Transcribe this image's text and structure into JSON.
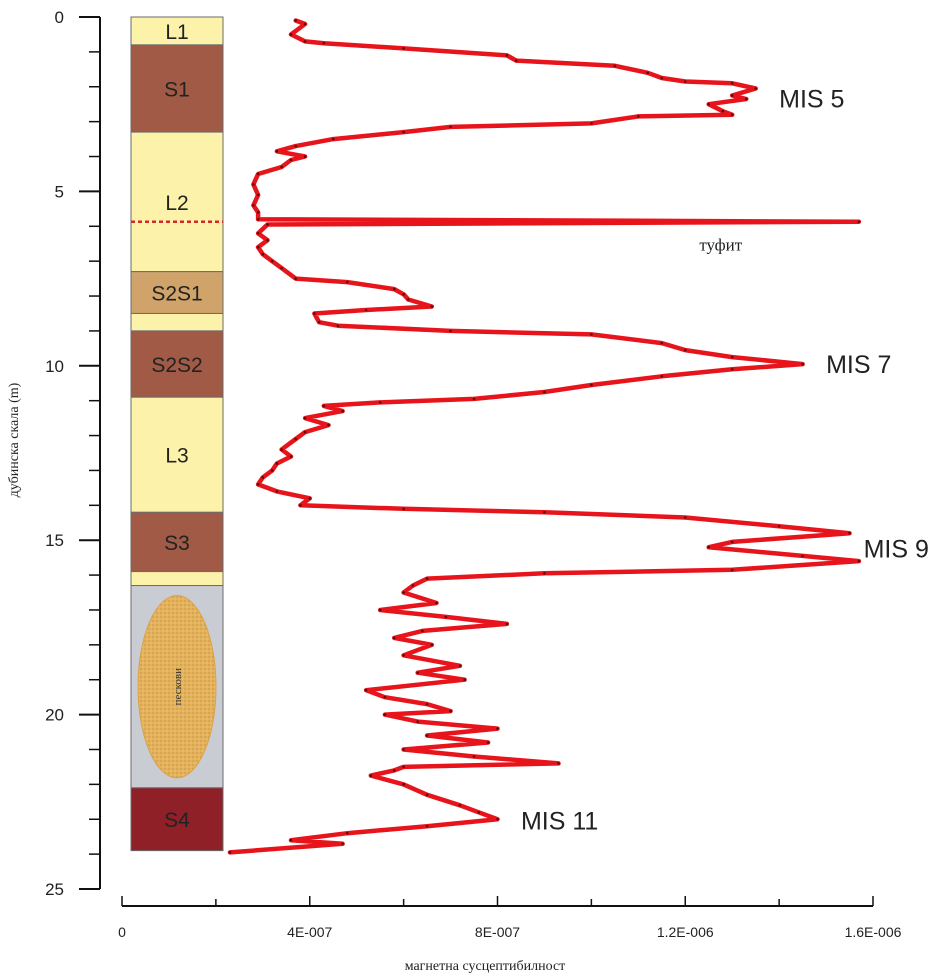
{
  "chart_data": {
    "type": "line",
    "title": "",
    "xlabel": "магнетна сусцептибилност",
    "ylabel": "дубинска скала (m)",
    "xlim": [
      0,
      1.6e-06
    ],
    "ylim": [
      0,
      25
    ],
    "y_inverted": true,
    "x_ticks": [
      0,
      4e-07,
      8e-07,
      1.2e-06,
      1.6e-06
    ],
    "x_tick_labels": [
      "0",
      "4E-007",
      "8E-007",
      "1.2E-006",
      "1.6E-006"
    ],
    "y_ticks": [
      0,
      5,
      10,
      15,
      20,
      25
    ],
    "y_tick_labels": [
      "0",
      "5",
      "10",
      "15",
      "20",
      "25"
    ],
    "grid": false,
    "line_color": "#e8141b",
    "series": [
      {
        "name": "",
        "points": [
          [
            3.7e-07,
            0.1
          ],
          [
            3.9e-07,
            0.2
          ],
          [
            3.6e-07,
            0.5
          ],
          [
            3.9e-07,
            0.7
          ],
          [
            4.3e-07,
            0.75
          ],
          [
            6e-07,
            0.9
          ],
          [
            8.2e-07,
            1.1
          ],
          [
            8.4e-07,
            1.25
          ],
          [
            1.05e-06,
            1.4
          ],
          [
            1.12e-06,
            1.6
          ],
          [
            1.15e-06,
            1.75
          ],
          [
            1.2e-06,
            1.85
          ],
          [
            1.3e-06,
            1.9
          ],
          [
            1.35e-06,
            2.05
          ],
          [
            1.3e-06,
            2.25
          ],
          [
            1.33e-06,
            2.35
          ],
          [
            1.25e-06,
            2.5
          ],
          [
            1.28e-06,
            2.7
          ],
          [
            1.3e-06,
            2.8
          ],
          [
            1.1e-06,
            2.85
          ],
          [
            1e-06,
            3.05
          ],
          [
            7e-07,
            3.15
          ],
          [
            6e-07,
            3.3
          ],
          [
            4.5e-07,
            3.5
          ],
          [
            3.7e-07,
            3.7
          ],
          [
            3.3e-07,
            3.85
          ],
          [
            3.9e-07,
            4.0
          ],
          [
            3.6e-07,
            4.1
          ],
          [
            3.4e-07,
            4.3
          ],
          [
            2.9e-07,
            4.5
          ],
          [
            2.8e-07,
            4.8
          ],
          [
            2.9e-07,
            5.1
          ],
          [
            2.8e-07,
            5.4
          ],
          [
            2.9e-07,
            5.6
          ],
          [
            2.9e-07,
            5.8
          ],
          [
            1.57e-06,
            5.87
          ],
          [
            3.1e-07,
            5.95
          ],
          [
            2.9e-07,
            6.2
          ],
          [
            3.1e-07,
            6.4
          ],
          [
            2.9e-07,
            6.6
          ],
          [
            3e-07,
            6.8
          ],
          [
            3.2e-07,
            7.0
          ],
          [
            3.4e-07,
            7.2
          ],
          [
            3.7e-07,
            7.5
          ],
          [
            4.8e-07,
            7.6
          ],
          [
            5.8e-07,
            7.8
          ],
          [
            6e-07,
            7.95
          ],
          [
            6.1e-07,
            8.1
          ],
          [
            6.6e-07,
            8.3
          ],
          [
            5.2e-07,
            8.4
          ],
          [
            4.1e-07,
            8.5
          ],
          [
            4.2e-07,
            8.75
          ],
          [
            4.6e-07,
            8.85
          ],
          [
            7e-07,
            9.0
          ],
          [
            1e-06,
            9.1
          ],
          [
            1.15e-06,
            9.35
          ],
          [
            1.2e-06,
            9.55
          ],
          [
            1.3e-06,
            9.75
          ],
          [
            1.45e-06,
            9.95
          ],
          [
            1.3e-06,
            10.1
          ],
          [
            1.15e-06,
            10.3
          ],
          [
            1e-06,
            10.55
          ],
          [
            9e-07,
            10.75
          ],
          [
            7.5e-07,
            10.95
          ],
          [
            5.5e-07,
            11.05
          ],
          [
            4.3e-07,
            11.15
          ],
          [
            4.7e-07,
            11.3
          ],
          [
            3.9e-07,
            11.5
          ],
          [
            4.4e-07,
            11.7
          ],
          [
            3.9e-07,
            11.9
          ],
          [
            3.7e-07,
            12.1
          ],
          [
            3.4e-07,
            12.4
          ],
          [
            3.6e-07,
            12.6
          ],
          [
            3.3e-07,
            12.8
          ],
          [
            3.2e-07,
            13.0
          ],
          [
            3e-07,
            13.2
          ],
          [
            2.9e-07,
            13.4
          ],
          [
            3.3e-07,
            13.6
          ],
          [
            4e-07,
            13.8
          ],
          [
            3.8e-07,
            14.0
          ],
          [
            6e-07,
            14.1
          ],
          [
            9e-07,
            14.2
          ],
          [
            1.2e-06,
            14.35
          ],
          [
            1.4e-06,
            14.6
          ],
          [
            1.55e-06,
            14.8
          ],
          [
            1.3e-06,
            15.05
          ],
          [
            1.25e-06,
            15.2
          ],
          [
            1.45e-06,
            15.45
          ],
          [
            1.57e-06,
            15.6
          ],
          [
            1.3e-06,
            15.85
          ],
          [
            9e-07,
            15.95
          ],
          [
            6.5e-07,
            16.1
          ],
          [
            6.2e-07,
            16.3
          ],
          [
            6e-07,
            16.5
          ],
          [
            6.7e-07,
            16.8
          ],
          [
            5.5e-07,
            17.0
          ],
          [
            6.9e-07,
            17.2
          ],
          [
            8.2e-07,
            17.4
          ],
          [
            6.4e-07,
            17.6
          ],
          [
            5.8e-07,
            17.8
          ],
          [
            6.6e-07,
            18.0
          ],
          [
            6e-07,
            18.3
          ],
          [
            7.2e-07,
            18.6
          ],
          [
            6.3e-07,
            18.8
          ],
          [
            7.3e-07,
            19.0
          ],
          [
            5.2e-07,
            19.3
          ],
          [
            5.6e-07,
            19.5
          ],
          [
            6.5e-07,
            19.7
          ],
          [
            7e-07,
            19.9
          ],
          [
            5.6e-07,
            20.0
          ],
          [
            6.3e-07,
            20.2
          ],
          [
            8e-07,
            20.4
          ],
          [
            6.5e-07,
            20.6
          ],
          [
            7.8e-07,
            20.8
          ],
          [
            6e-07,
            21.0
          ],
          [
            7.5e-07,
            21.2
          ],
          [
            9.3e-07,
            21.4
          ],
          [
            6e-07,
            21.5
          ],
          [
            5.8e-07,
            21.6
          ],
          [
            5.3e-07,
            21.75
          ],
          [
            6e-07,
            22.0
          ],
          [
            6.5e-07,
            22.3
          ],
          [
            7.2e-07,
            22.6
          ],
          [
            7.6e-07,
            22.8
          ],
          [
            8e-07,
            23.0
          ],
          [
            6.5e-07,
            23.2
          ],
          [
            4.8e-07,
            23.4
          ],
          [
            3.6e-07,
            23.6
          ],
          [
            4.7e-07,
            23.7
          ],
          [
            2.3e-07,
            23.95
          ]
        ]
      }
    ],
    "annotations": [
      {
        "text": "MIS 5",
        "x": 1.4e-06,
        "y": 2.6
      },
      {
        "text": "MIS 7",
        "x": 1.5e-06,
        "y": 10.2
      },
      {
        "text": "MIS 9",
        "x": 1.58e-06,
        "y": 15.5
      },
      {
        "text": "MIS 11",
        "x": 8.5e-07,
        "y": 23.3
      },
      {
        "text": "туфит",
        "x": 1.23e-06,
        "y": 6.7
      }
    ]
  },
  "stratigraphy": {
    "layers": [
      {
        "label": "L1",
        "top": 0,
        "bottom": 0.8,
        "color": "#fdf2aa"
      },
      {
        "label": "S1",
        "top": 0.8,
        "bottom": 3.3,
        "color": "#a15a45"
      },
      {
        "label": "L2",
        "top": 3.3,
        "bottom": 7.3,
        "color": "#fdf2aa"
      },
      {
        "label": "S2S1",
        "top": 7.3,
        "bottom": 8.5,
        "color": "#cfa36a"
      },
      {
        "label": "",
        "top": 8.5,
        "bottom": 9.0,
        "color": "#fdf2aa"
      },
      {
        "label": "S2S2",
        "top": 9.0,
        "bottom": 10.9,
        "color": "#a15a45"
      },
      {
        "label": "L3",
        "top": 10.9,
        "bottom": 14.2,
        "color": "#fdf2aa"
      },
      {
        "label": "S3",
        "top": 14.2,
        "bottom": 15.9,
        "color": "#a15a45"
      },
      {
        "label": "",
        "top": 15.9,
        "bottom": 16.3,
        "color": "#fdf2aa"
      },
      {
        "label": "",
        "top": 16.3,
        "bottom": 22.1,
        "color": "#c9cdd3"
      },
      {
        "label": "S4",
        "top": 22.1,
        "bottom": 23.9,
        "color": "#8f2028"
      }
    ],
    "tuff_depth": 5.87,
    "tuff_color": "#d62828",
    "sand_label": "пескови",
    "sand_color": "#e4b25c"
  }
}
